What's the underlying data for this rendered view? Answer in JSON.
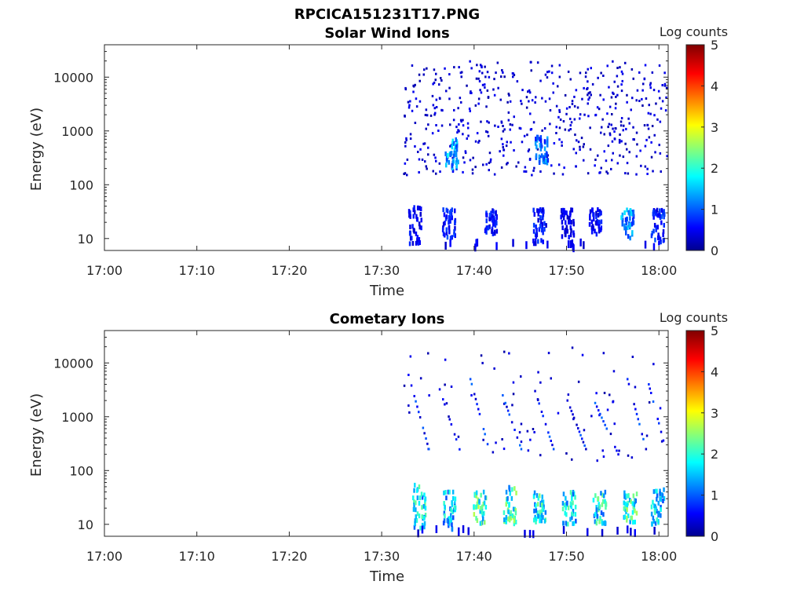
{
  "figure": {
    "title": "RPCICA151231T17.PNG"
  },
  "chart_data": [
    {
      "type": "heatmap",
      "title": "Solar Wind Ions",
      "xlabel": "Time",
      "ylabel": "Energy (eV)",
      "x_ticks": [
        "17:00",
        "17:10",
        "17:20",
        "17:30",
        "17:40",
        "17:50",
        "18:00"
      ],
      "x_range_minutes": [
        0,
        61
      ],
      "y_scale": "log",
      "y_ticks": [
        "10",
        "100",
        "1000",
        "10000"
      ],
      "y_range": [
        6,
        40000
      ],
      "colorbar": {
        "label": "Log counts",
        "ticks": [
          "0",
          "1",
          "2",
          "3",
          "4",
          "5"
        ],
        "range": [
          0,
          5
        ],
        "colormap": "jet"
      },
      "data_start_minute": 32.3,
      "clusters": [
        {
          "t": 33.5,
          "e_low": 8,
          "e_high": 40,
          "level": 0.7
        },
        {
          "t": 37.2,
          "e_low": 10,
          "e_high": 35,
          "level": 0.9
        },
        {
          "t": 37.5,
          "e_low": 200,
          "e_high": 700,
          "level": 1.6
        },
        {
          "t": 41.8,
          "e_low": 12,
          "e_high": 35,
          "level": 0.8
        },
        {
          "t": 47.0,
          "e_low": 8,
          "e_high": 35,
          "level": 0.8
        },
        {
          "t": 47.2,
          "e_low": 250,
          "e_high": 800,
          "level": 1.3
        },
        {
          "t": 50.0,
          "e_low": 10,
          "e_high": 35,
          "level": 0.6
        },
        {
          "t": 53.0,
          "e_low": 12,
          "e_high": 35,
          "level": 0.7
        },
        {
          "t": 56.5,
          "e_low": 10,
          "e_high": 35,
          "level": 1.5
        },
        {
          "t": 59.8,
          "e_low": 8,
          "e_high": 35,
          "level": 0.9
        }
      ],
      "scatter_energy_range": [
        150,
        20000
      ],
      "scatter_density": 1.0
    },
    {
      "type": "heatmap",
      "title": "Cometary Ions",
      "xlabel": "Time",
      "ylabel": "Energy (eV)",
      "x_ticks": [
        "17:00",
        "17:10",
        "17:20",
        "17:30",
        "17:40",
        "17:50",
        "18:00"
      ],
      "x_range_minutes": [
        0,
        61
      ],
      "y_scale": "log",
      "y_ticks": [
        "10",
        "100",
        "1000",
        "10000"
      ],
      "y_range": [
        6,
        40000
      ],
      "colorbar": {
        "label": "Log counts",
        "ticks": [
          "0",
          "1",
          "2",
          "3",
          "4",
          "5"
        ],
        "range": [
          0,
          5
        ],
        "colormap": "jet"
      },
      "data_start_minute": 32.3,
      "clusters": [
        {
          "t": 34.0,
          "e_low": 8,
          "e_high": 60,
          "level": 2.0
        },
        {
          "t": 37.2,
          "e_low": 8,
          "e_high": 40,
          "level": 1.8
        },
        {
          "t": 40.5,
          "e_low": 10,
          "e_high": 40,
          "level": 2.4
        },
        {
          "t": 43.8,
          "e_low": 10,
          "e_high": 50,
          "level": 2.3
        },
        {
          "t": 47.0,
          "e_low": 10,
          "e_high": 40,
          "level": 2.2
        },
        {
          "t": 50.2,
          "e_low": 10,
          "e_high": 40,
          "level": 2.0
        },
        {
          "t": 53.5,
          "e_low": 10,
          "e_high": 45,
          "level": 2.1
        },
        {
          "t": 56.8,
          "e_low": 10,
          "e_high": 40,
          "level": 2.3
        },
        {
          "t": 59.8,
          "e_low": 10,
          "e_high": 45,
          "level": 1.9
        }
      ],
      "streaks": [
        {
          "t_start": 32.8,
          "t_end": 35.0,
          "e_start": 6000,
          "e_end": 250
        },
        {
          "t_start": 36.0,
          "t_end": 38.5,
          "e_start": 4000,
          "e_end": 200
        },
        {
          "t_start": 39.5,
          "t_end": 41.5,
          "e_start": 5000,
          "e_end": 250
        },
        {
          "t_start": 43.0,
          "t_end": 45.0,
          "e_start": 2500,
          "e_end": 250
        },
        {
          "t_start": 46.5,
          "t_end": 48.5,
          "e_start": 3000,
          "e_end": 250
        },
        {
          "t_start": 50.0,
          "t_end": 52.0,
          "e_start": 2000,
          "e_end": 250
        },
        {
          "t_start": 53.0,
          "t_end": 55.5,
          "e_start": 1800,
          "e_end": 200
        },
        {
          "t_start": 56.5,
          "t_end": 58.5,
          "e_start": 5000,
          "e_end": 250
        },
        {
          "t_start": 58.8,
          "t_end": 60.5,
          "e_start": 4000,
          "e_end": 300
        }
      ],
      "scatter_energy_range": [
        150,
        20000
      ],
      "scatter_density": 0.15
    }
  ]
}
